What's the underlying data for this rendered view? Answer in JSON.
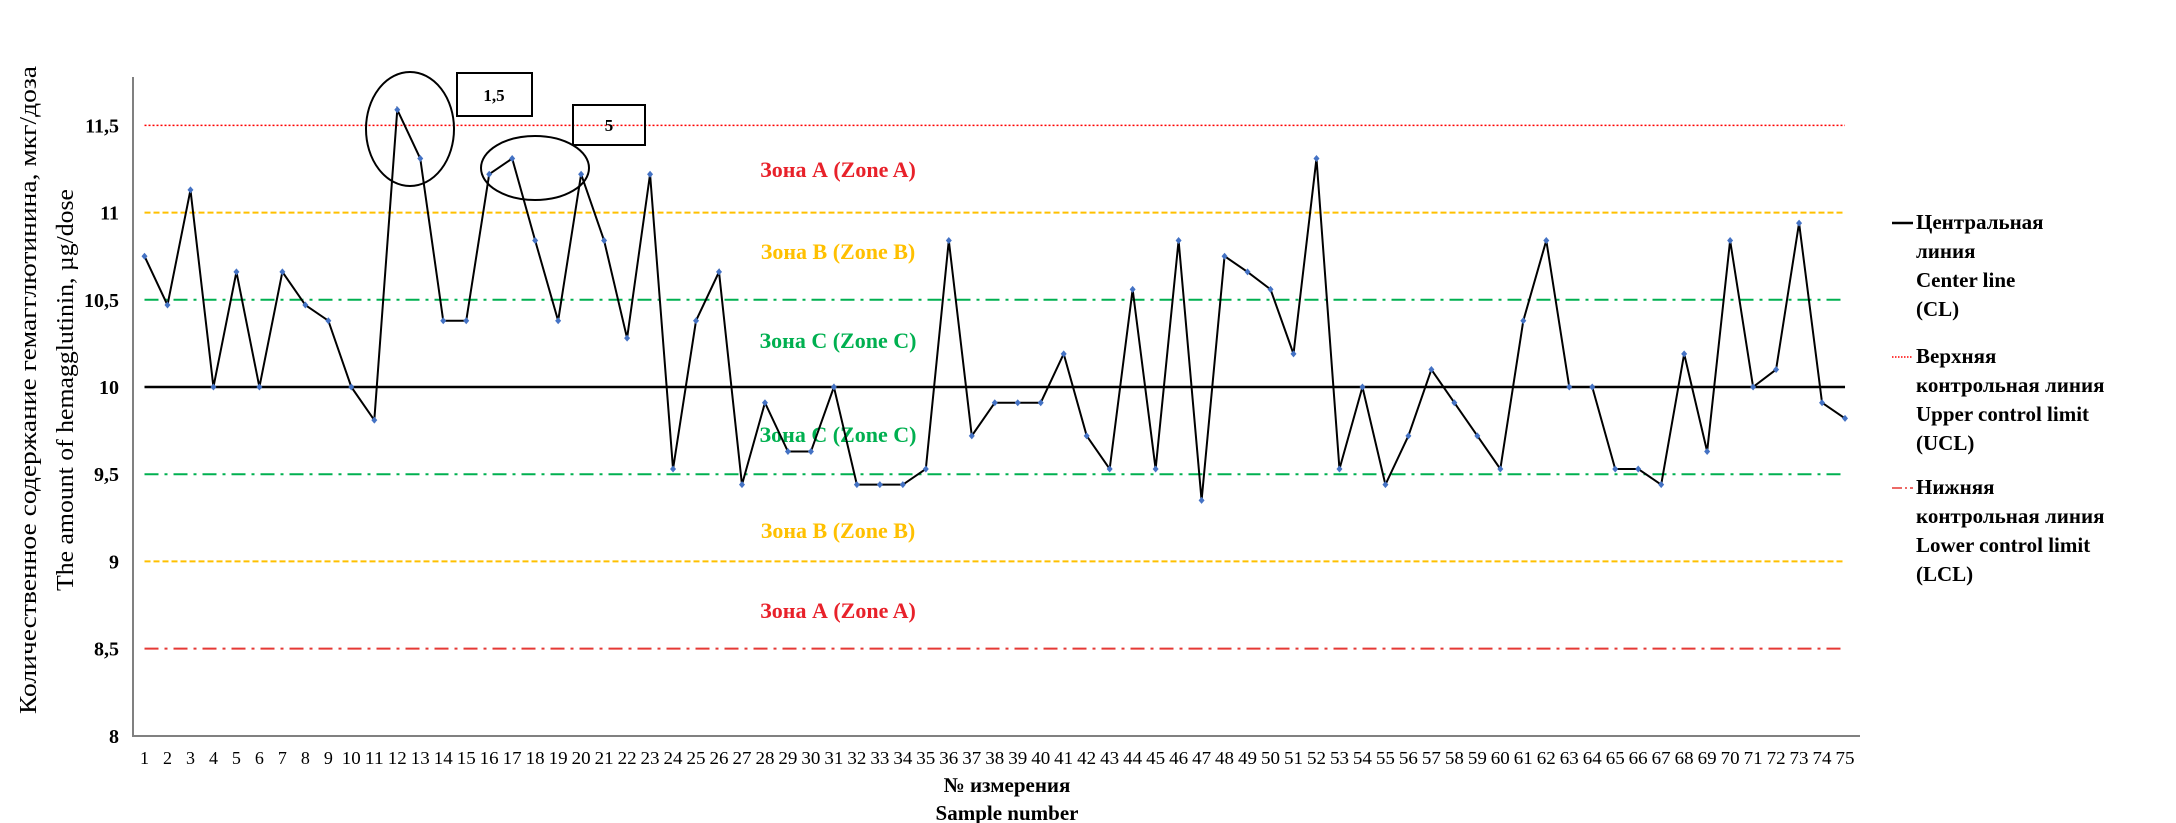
{
  "chart_data": {
    "type": "line",
    "title": "",
    "ylabel": [
      "Количественное содержание гемагглютинина, мкг/доза",
      "The amount of hemagglutinin, µg/dose"
    ],
    "xlabel": [
      "№ измерения",
      "Sample number"
    ],
    "ylim": [
      8,
      11.75
    ],
    "yticks": [
      "8",
      "8,5",
      "9",
      "9,5",
      "10",
      "10,5",
      "11",
      "11,5"
    ],
    "ytick_values": [
      8,
      8.5,
      9,
      9.5,
      10,
      10.5,
      11,
      11.5
    ],
    "x": [
      1,
      2,
      3,
      4,
      5,
      6,
      7,
      8,
      9,
      10,
      11,
      12,
      13,
      14,
      15,
      16,
      17,
      18,
      19,
      20,
      21,
      22,
      23,
      24,
      25,
      26,
      27,
      28,
      29,
      30,
      31,
      32,
      33,
      34,
      35,
      36,
      37,
      38,
      39,
      40,
      41,
      42,
      43,
      44,
      45,
      46,
      47,
      48,
      49,
      50,
      51,
      52,
      53,
      54,
      55,
      56,
      57,
      58,
      59,
      60,
      61,
      62,
      63,
      64,
      65,
      66,
      67,
      68,
      69,
      70,
      71,
      72,
      73,
      74,
      75
    ],
    "values": [
      10.75,
      10.47,
      11.13,
      10.0,
      10.66,
      10.0,
      10.66,
      10.47,
      10.38,
      10.0,
      9.81,
      11.59,
      11.31,
      10.38,
      10.38,
      11.22,
      11.31,
      10.84,
      10.38,
      11.22,
      10.84,
      10.28,
      11.22,
      9.53,
      10.38,
      10.66,
      9.44,
      9.91,
      9.63,
      9.63,
      10.0,
      9.44,
      9.44,
      9.44,
      9.53,
      10.84,
      9.72,
      9.91,
      9.91,
      9.91,
      10.19,
      9.72,
      9.53,
      10.56,
      9.53,
      10.84,
      9.35,
      10.75,
      10.66,
      10.56,
      10.19,
      11.31,
      9.53,
      10.0,
      9.44,
      9.72,
      10.1,
      9.91,
      9.72,
      9.53,
      10.38,
      10.84,
      10.0,
      10.0,
      9.53,
      9.53,
      9.44,
      10.19,
      9.63,
      10.84,
      10.0,
      10.1,
      10.94,
      9.91,
      9.82
    ],
    "reference_lines": [
      {
        "id": "ucl",
        "value": 11.5,
        "color": "#ff0000",
        "style": "dotted"
      },
      {
        "id": "zone-b-upper",
        "value": 11.0,
        "color": "#ffc000",
        "style": "dashed"
      },
      {
        "id": "zone-c-upper",
        "value": 10.5,
        "color": "#00b050",
        "style": "dashdot"
      },
      {
        "id": "center",
        "value": 10.0,
        "color": "#000000",
        "style": "solid"
      },
      {
        "id": "zone-c-lower",
        "value": 9.5,
        "color": "#00b050",
        "style": "dashdot"
      },
      {
        "id": "zone-b-lower",
        "value": 9.0,
        "color": "#ffc000",
        "style": "dashed"
      },
      {
        "id": "lcl",
        "value": 8.5,
        "color": "#e53935",
        "style": "dashdot"
      }
    ],
    "zones": [
      {
        "label": "Зона А (Zone A)",
        "color": "#e8212a",
        "value": 11.25
      },
      {
        "label": "Зона В (Zone B)",
        "color": "#ffc000",
        "value": 10.78
      },
      {
        "label": "Зона С (Zone C)",
        "color": "#00b050",
        "value": 10.27
      },
      {
        "label": "Зона С (Zone C)",
        "color": "#00b050",
        "value": 9.73
      },
      {
        "label": "Зона В (Zone B)",
        "color": "#ffc000",
        "value": 9.18
      },
      {
        "label": "Зона А (Zone A)",
        "color": "#e8212a",
        "value": 8.72
      }
    ],
    "annotations": [
      {
        "label": "1,5",
        "points": [
          12,
          13
        ]
      },
      {
        "label": "5",
        "points": [
          16,
          17,
          20
        ]
      }
    ],
    "series_color": "#000000",
    "marker_color": "#4472c4",
    "grid": false,
    "legend_position": "right",
    "legend": [
      {
        "lines": [
          "Центральная",
          "линия",
          "Center line",
          "(CL)"
        ],
        "color": "#000000",
        "style": "solid"
      },
      {
        "lines": [
          "Верхняя",
          "контрольная линия",
          "Upper control limit",
          "(UCL)"
        ],
        "color": "#ff0000",
        "style": "dotted"
      },
      {
        "lines": [
          "Нижняя",
          "контрольная линия",
          "Lower control limit",
          "(LCL)"
        ],
        "color": "#e53935",
        "style": "dashdot"
      }
    ]
  }
}
